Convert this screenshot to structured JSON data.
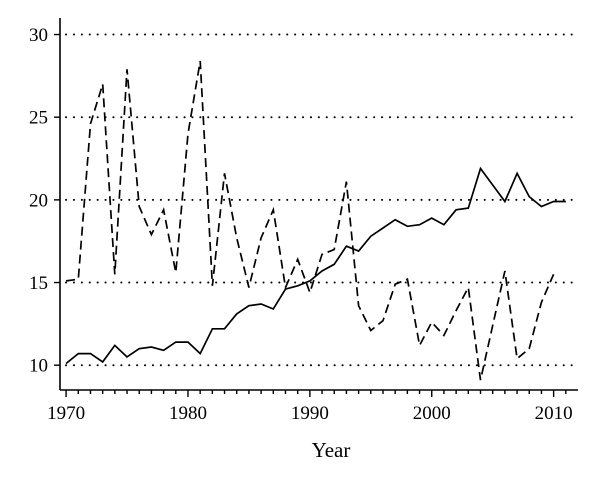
{
  "chart_data": {
    "type": "line",
    "title": "",
    "xlabel": "Year",
    "ylabel": "",
    "xlim": [
      1969.5,
      2012
    ],
    "ylim": [
      8.5,
      31
    ],
    "xticks": [
      1970,
      1980,
      1990,
      2000,
      2010
    ],
    "yticks": [
      10,
      15,
      20,
      25,
      30
    ],
    "grid": "horizontal-dotted",
    "series": [
      {
        "style": "solid",
        "x": [
          1970,
          1971,
          1972,
          1973,
          1974,
          1975,
          1976,
          1977,
          1978,
          1979,
          1980,
          1981,
          1982,
          1983,
          1984,
          1985,
          1986,
          1987,
          1988,
          1989,
          1990,
          1991,
          1992,
          1993,
          1994,
          1995,
          1996,
          1997,
          1998,
          1999,
          2000,
          2001,
          2002,
          2003,
          2004,
          2005,
          2006,
          2007,
          2008,
          2009,
          2010,
          2011
        ],
        "y": [
          10.1,
          10.7,
          10.7,
          10.2,
          11.2,
          10.5,
          11.0,
          11.1,
          10.9,
          11.4,
          11.4,
          10.7,
          12.2,
          12.2,
          13.1,
          13.6,
          13.7,
          13.4,
          14.6,
          14.8,
          15.1,
          15.7,
          16.1,
          17.2,
          16.9,
          17.8,
          18.3,
          18.8,
          18.4,
          18.5,
          18.9,
          18.5,
          19.4,
          19.5,
          21.9,
          20.9,
          19.9,
          21.6,
          20.2,
          19.6,
          19.9,
          19.9
        ]
      },
      {
        "style": "dashed",
        "x": [
          1970,
          1971,
          1972,
          1973,
          1974,
          1975,
          1976,
          1977,
          1978,
          1979,
          1980,
          1981,
          1982,
          1983,
          1984,
          1985,
          1986,
          1987,
          1988,
          1989,
          1990,
          1991,
          1992,
          1993,
          1994,
          1995,
          1996,
          1997,
          1998,
          1999,
          2000,
          2001,
          2002,
          2003,
          2004,
          2005,
          2006,
          2007,
          2008,
          2009,
          2010
        ],
        "y": [
          15.1,
          15.2,
          24.6,
          27.0,
          15.5,
          27.9,
          19.6,
          17.9,
          19.4,
          15.6,
          24.0,
          28.4,
          14.8,
          21.6,
          17.7,
          14.7,
          17.7,
          19.4,
          14.7,
          16.4,
          14.4,
          16.7,
          17.0,
          21.1,
          13.6,
          12.1,
          12.7,
          14.9,
          15.2,
          11.2,
          12.6,
          11.8,
          13.3,
          14.7,
          9.1,
          12.4,
          15.7,
          10.4,
          11.0,
          13.8,
          15.5
        ]
      }
    ]
  }
}
